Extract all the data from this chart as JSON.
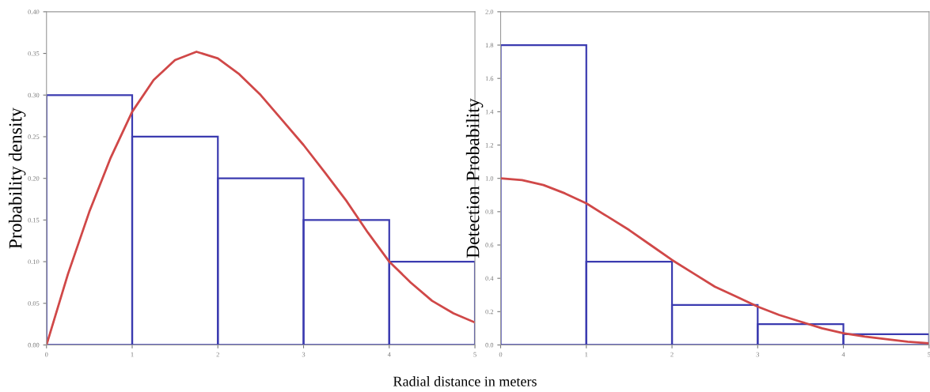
{
  "chart_data": [
    {
      "type": "histogram",
      "ylabel": "Probability density",
      "xlabel": "Radial distance in meters",
      "bins": [
        0,
        1,
        2,
        3,
        4,
        5
      ],
      "values": [
        0.3,
        0.25,
        0.2,
        0.15,
        0.1
      ],
      "color": "#3b3bb0",
      "series": [
        {
          "type": "line",
          "color": "#d04848",
          "x": [
            0,
            0.25,
            0.5,
            0.75,
            1,
            1.25,
            1.5,
            1.75,
            2,
            2.25,
            2.5,
            2.75,
            3,
            3.25,
            3.5,
            3.75,
            4,
            4.25,
            4.5,
            4.75,
            5
          ],
          "values": [
            0,
            0.085,
            0.16,
            0.225,
            0.28,
            0.318,
            0.342,
            0.352,
            0.344,
            0.325,
            0.3,
            0.27,
            0.24,
            0.207,
            0.173,
            0.135,
            0.1,
            0.075,
            0.053,
            0.038,
            0.027
          ]
        }
      ],
      "xlim": [
        0,
        5
      ],
      "xticks": [
        0,
        1,
        2,
        3,
        4,
        5
      ],
      "ylim": [
        0,
        0.4
      ],
      "yticks": [
        {
          "value": 0,
          "label": "0.00"
        },
        0.05,
        {
          "value": 0.1,
          "label": "0.10"
        },
        0.15,
        {
          "value": 0.2,
          "label": "0.20"
        },
        0.25,
        {
          "value": 0.3,
          "label": "0.30"
        },
        0.35,
        {
          "value": 0.4,
          "label": "0.40"
        }
      ]
    },
    {
      "type": "histogram",
      "ylabel": "Detection Probability",
      "bins": [
        0,
        1,
        2,
        3,
        4,
        5
      ],
      "values": [
        1.8,
        0.5,
        0.24,
        0.125,
        0.065
      ],
      "color": "#3b3bb0",
      "series": [
        {
          "type": "line",
          "color": "#d04848",
          "x": [
            0,
            0.25,
            0.5,
            0.75,
            1,
            1.25,
            1.5,
            1.75,
            2,
            2.25,
            2.5,
            2.75,
            3,
            3.25,
            3.5,
            3.75,
            4,
            4.25,
            4.5,
            4.75,
            5
          ],
          "values": [
            1.0,
            0.99,
            0.96,
            0.91,
            0.85,
            0.77,
            0.69,
            0.6,
            0.51,
            0.43,
            0.35,
            0.29,
            0.23,
            0.18,
            0.14,
            0.1,
            0.07,
            0.05,
            0.035,
            0.02,
            0.01
          ]
        }
      ],
      "xlim": [
        0,
        5
      ],
      "xticks": [
        0,
        1,
        2,
        3,
        4,
        5
      ],
      "ylim": [
        0,
        2.0
      ],
      "yticks": [
        {
          "value": 0,
          "label": "0.0"
        },
        0.2,
        0.4,
        0.6,
        0.8,
        {
          "value": 1,
          "label": "1.0"
        },
        1.2,
        1.4,
        1.6,
        1.8,
        {
          "value": 2,
          "label": "2.0"
        }
      ]
    }
  ]
}
